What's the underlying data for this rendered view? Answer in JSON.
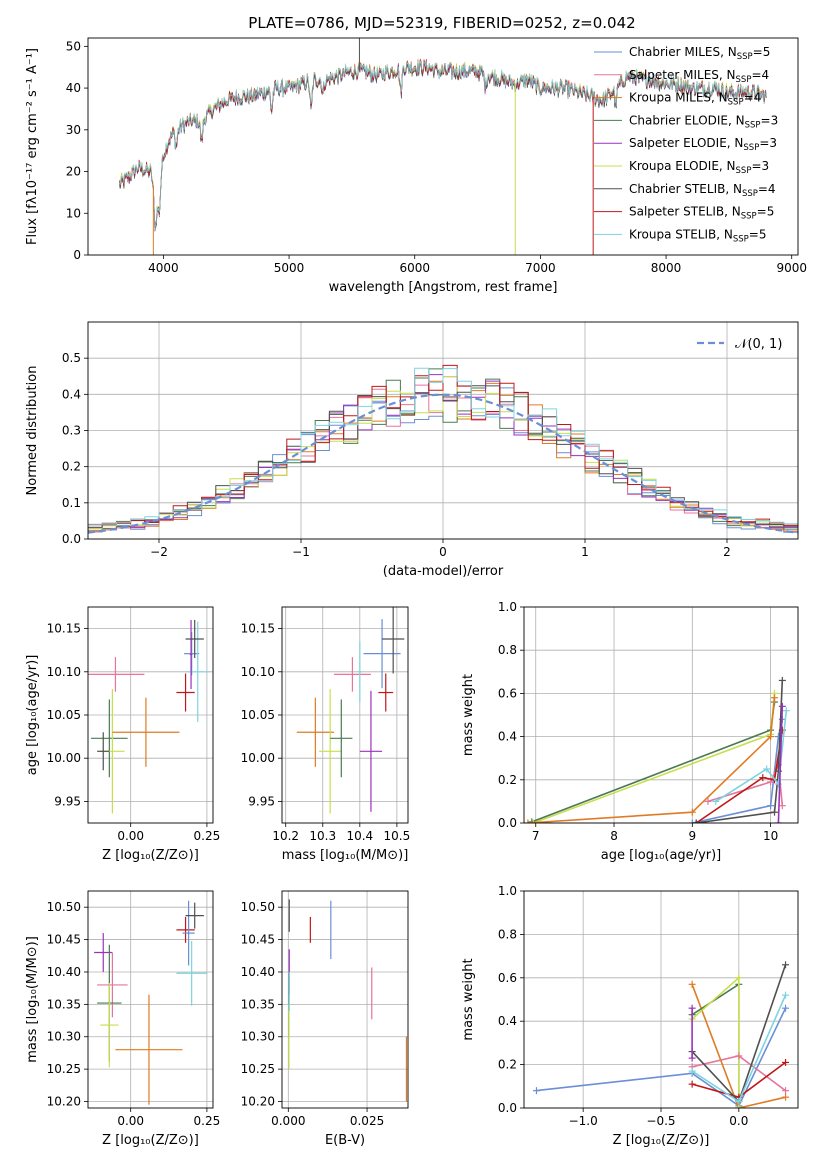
{
  "figure": {
    "title": "PLATE=0786, MJD=52319, FIBERID=0252, z=0.042"
  },
  "colors": {
    "ChMi": "#6a8fd6",
    "SaMi": "#e8739b",
    "KrMi": "#e07b22",
    "ChEl": "#4a7a52",
    "SaEl": "#9933bb",
    "KrEl": "#c7de4e",
    "ChSt": "#505050",
    "SaSt": "#c01818",
    "KrSt": "#7dd3e0"
  },
  "chart_data": [
    {
      "type": "line",
      "id": "spectrum",
      "title": "PLATE=0786, MJD=52319, FIBERID=0252, z=0.042",
      "xlabel": "wavelength [Angstrom, rest frame]",
      "ylabel": "Flux [fλ10⁻¹⁷ erg cm⁻² s⁻¹ A⁻¹]",
      "xlim": [
        3400,
        9050
      ],
      "ylim": [
        0,
        52
      ],
      "xticks": [
        4000,
        5000,
        6000,
        7000,
        8000,
        9000
      ],
      "yticks": [
        0,
        10,
        20,
        30,
        40,
        50
      ],
      "grid": false,
      "legend_position": "right",
      "continuum": {
        "x": [
          3650,
          3700,
          3800,
          3900,
          3950,
          4000,
          4050,
          4100,
          4200,
          4300,
          4400,
          4500,
          4600,
          4700,
          4800,
          4900,
          5000,
          5100,
          5200,
          5300,
          5400,
          5500,
          5600,
          5700,
          5800,
          5900,
          6000,
          6100,
          6200,
          6300,
          6400,
          6500,
          6600,
          6700,
          6800,
          6900,
          7000,
          7100,
          7200,
          7300,
          7400,
          7500,
          7600,
          7700,
          7800,
          7900,
          8000,
          8100,
          8200,
          8300,
          8400,
          8500,
          8600,
          8700,
          8800
        ],
        "y": [
          17,
          18,
          21,
          20,
          12,
          24,
          28,
          30,
          32,
          32,
          35,
          37,
          38,
          38,
          39,
          40,
          40,
          41,
          42,
          42,
          43,
          44,
          44,
          43,
          44,
          45,
          45,
          45,
          44,
          44,
          44,
          44,
          43,
          42,
          41,
          42,
          40,
          40,
          40,
          39,
          38,
          37,
          40,
          43,
          42,
          42,
          41,
          41,
          40,
          40,
          40,
          39,
          39,
          39,
          38
        ]
      },
      "series": [
        {
          "name": "Chabrier MILES, N_SSP=5",
          "label_main": "Chabrier MILES, N",
          "label_sub": "SSP",
          "label_tail": "=5",
          "key": "ChMi"
        },
        {
          "name": "Salpeter MILES, N_SSP=4",
          "label_main": "Salpeter MILES, N",
          "label_sub": "SSP",
          "label_tail": "=4",
          "key": "SaMi"
        },
        {
          "name": "Kroupa MILES, N_SSP=4",
          "label_main": "Kroupa MILES, N",
          "label_sub": "SSP",
          "label_tail": "=4",
          "key": "KrMi"
        },
        {
          "name": "Chabrier ELODIE, N_SSP=3",
          "label_main": "Chabrier ELODIE, N",
          "label_sub": "SSP",
          "label_tail": "=3",
          "key": "ChEl"
        },
        {
          "name": "Salpeter ELODIE, N_SSP=3",
          "label_main": "Salpeter ELODIE, N",
          "label_sub": "SSP",
          "label_tail": "=3",
          "key": "SaEl"
        },
        {
          "name": "Kroupa ELODIE, N_SSP=3",
          "label_main": "Kroupa ELODIE, N",
          "label_sub": "SSP",
          "label_tail": "=3",
          "key": "KrEl"
        },
        {
          "name": "Chabrier STELIB, N_SSP=4",
          "label_main": "Chabrier STELIB, N",
          "label_sub": "SSP",
          "label_tail": "=4",
          "key": "ChSt"
        },
        {
          "name": "Salpeter STELIB, N_SSP=5",
          "label_main": "Salpeter STELIB, N",
          "label_sub": "SSP",
          "label_tail": "=5",
          "key": "SaSt"
        },
        {
          "name": "Kroupa STELIB, N_SSP=5",
          "label_main": "Kroupa STELIB, N",
          "label_sub": "SSP",
          "label_tail": "=5",
          "key": "KrSt"
        }
      ],
      "spikes": [
        {
          "key": "KrMi",
          "x": 3920
        },
        {
          "key": "KrEl",
          "x": 6800
        },
        {
          "key": "SaSt",
          "x": 7420
        },
        {
          "key": "ChSt",
          "x": 5560,
          "to": 53
        }
      ]
    },
    {
      "type": "line",
      "id": "residuals",
      "xlabel": "(data-model)/error",
      "ylabel": "Normed distribution",
      "xlim": [
        -2.5,
        2.5
      ],
      "ylim": [
        0,
        0.6
      ],
      "xticks": [
        -2,
        -1,
        0,
        1,
        2
      ],
      "xticklabels": [
        "−2",
        "−1",
        "0",
        "1",
        "2"
      ],
      "yticks": [
        0.0,
        0.1,
        0.2,
        0.3,
        0.4,
        0.5
      ],
      "yticklabels": [
        "0.0",
        "0.1",
        "0.2",
        "0.3",
        "0.4",
        "0.5"
      ],
      "grid": true,
      "legend_position": "top-right",
      "legend_label": "𝒩(0, 1)",
      "reference_curve": "standard normal, dashed"
    },
    {
      "type": "scatter",
      "id": "age_vs_Z",
      "xlabel": "Z [log₁₀(Z/Z⊙)]",
      "ylabel": "age  [log₁₀(age/yr)]",
      "xlim": [
        -0.14,
        0.27
      ],
      "ylim": [
        9.925,
        10.175
      ],
      "xticks": [
        0.0,
        0.25
      ],
      "xticklabels": [
        "0.00",
        "0.25"
      ],
      "yticks": [
        9.95,
        10.0,
        10.05,
        10.1,
        10.15
      ],
      "yticklabels": [
        "9.95",
        "10.00",
        "10.05",
        "10.10",
        "10.15"
      ],
      "grid": true,
      "points": [
        {
          "key": "SaMi",
          "x": -0.05,
          "y": 10.097,
          "ex": 0.095,
          "ey": 0.02
        },
        {
          "key": "ChEl",
          "x": -0.07,
          "y": 10.023,
          "ex": 0.06,
          "ey": 0.045
        },
        {
          "key": "KrEl",
          "x": -0.06,
          "y": 10.008,
          "ex": 0.04,
          "ey": 0.072
        },
        {
          "key": "ChSt",
          "x": -0.09,
          "y": 10.008,
          "ex": 0.02,
          "ey": 0.022
        },
        {
          "key": "KrMi",
          "x": 0.05,
          "y": 10.03,
          "ex": 0.11,
          "ey": 0.04
        },
        {
          "key": "SaSt",
          "x": 0.18,
          "y": 10.076,
          "ex": 0.03,
          "ey": 0.022
        },
        {
          "key": "ChMi",
          "x": 0.2,
          "y": 10.121,
          "ex": 0.025,
          "ey": 0.025
        },
        {
          "key": "KrSt",
          "x": 0.22,
          "y": 10.1,
          "ex": 0.04,
          "ey": 0.058
        },
        {
          "key": "SaEl",
          "x": 0.198,
          "y": 10.12,
          "ex": 0.004,
          "ey": 0.04
        },
        {
          "key": "ChSt",
          "x": 0.21,
          "y": 10.138,
          "ex": 0.03,
          "ey": 0.022
        }
      ]
    },
    {
      "type": "scatter",
      "id": "age_vs_mass",
      "xlabel": "mass [log₁₀(M/M⊙)]",
      "ylabel": "",
      "xlim": [
        10.19,
        10.53
      ],
      "ylim": [
        9.925,
        10.175
      ],
      "xticks": [
        10.2,
        10.3,
        10.4,
        10.5
      ],
      "xticklabels": [
        "10.2",
        "10.3",
        "10.4",
        "10.5"
      ],
      "yticks": [
        9.95,
        10.0,
        10.05,
        10.1,
        10.15
      ],
      "yticklabels": [
        "9.95",
        "10.00",
        "10.05",
        "10.10",
        "10.15"
      ],
      "grid": true,
      "points": [
        {
          "key": "KrMi",
          "x": 10.28,
          "y": 10.03,
          "ex": 0.05,
          "ey": 0.04
        },
        {
          "key": "KrEl",
          "x": 10.32,
          "y": 10.008,
          "ex": 0.03,
          "ey": 0.072
        },
        {
          "key": "ChEl",
          "x": 10.35,
          "y": 10.023,
          "ex": 0.03,
          "ey": 0.045
        },
        {
          "key": "SaMi",
          "x": 10.38,
          "y": 10.097,
          "ex": 0.05,
          "ey": 0.02
        },
        {
          "key": "KrSt",
          "x": 10.4,
          "y": 10.1,
          "ex": 0.005,
          "ey": 0.035
        },
        {
          "key": "SaEl",
          "x": 10.43,
          "y": 10.008,
          "ex": 0.03,
          "ey": 0.07
        },
        {
          "key": "ChMi",
          "x": 10.46,
          "y": 10.121,
          "ex": 0.05,
          "ey": 0.04
        },
        {
          "key": "SaSt",
          "x": 10.47,
          "y": 10.076,
          "ex": 0.02,
          "ey": 0.022
        },
        {
          "key": "ChSt",
          "x": 10.49,
          "y": 10.138,
          "ex": 0.03,
          "ey": 0.04
        }
      ]
    },
    {
      "type": "line",
      "id": "massweight_vs_age",
      "xlabel": "age  [log₁₀(age/yr)]",
      "ylabel": "mass weight",
      "xlim": [
        6.85,
        10.35
      ],
      "ylim": [
        0,
        1
      ],
      "xticks": [
        7,
        8,
        9,
        10
      ],
      "xticklabels": [
        "7",
        "8",
        "9",
        "10"
      ],
      "yticks": [
        0.0,
        0.2,
        0.4,
        0.6,
        0.8,
        1.0
      ],
      "yticklabels": [
        "0.0",
        "0.2",
        "0.4",
        "0.6",
        "0.8",
        "1.0"
      ],
      "grid": true,
      "series": [
        {
          "key": "ChEl",
          "x": [
            6.95,
            10.0,
            10.05
          ],
          "y": [
            0.005,
            0.43,
            0.56
          ]
        },
        {
          "key": "KrEl",
          "x": [
            6.97,
            10.0,
            10.05
          ],
          "y": [
            0.0,
            0.41,
            0.6
          ]
        },
        {
          "key": "KrMi",
          "x": [
            6.9,
            9.0,
            10.0,
            10.05
          ],
          "y": [
            0.0,
            0.05,
            0.4,
            0.58
          ]
        },
        {
          "key": "ChMi",
          "x": [
            9.0,
            10.0,
            10.1,
            10.15
          ],
          "y": [
            0.0,
            0.08,
            0.4,
            0.48
          ]
        },
        {
          "key": "SaMi",
          "x": [
            9.2,
            10.0,
            10.1,
            10.15
          ],
          "y": [
            0.1,
            0.19,
            0.27,
            0.08
          ]
        },
        {
          "key": "SaSt",
          "x": [
            9.05,
            9.9,
            10.05,
            10.15
          ],
          "y": [
            0.0,
            0.21,
            0.2,
            0.43
          ]
        },
        {
          "key": "ChSt",
          "x": [
            9.05,
            10.05,
            10.1,
            10.15
          ],
          "y": [
            0.0,
            0.05,
            0.24,
            0.66
          ]
        },
        {
          "key": "KrSt",
          "x": [
            9.3,
            9.95,
            10.1,
            10.2
          ],
          "y": [
            0.1,
            0.25,
            0.18,
            0.52
          ]
        },
        {
          "key": "SaEl",
          "x": [
            10.1,
            10.15
          ],
          "y": [
            0.0,
            0.54
          ]
        }
      ]
    },
    {
      "type": "scatter",
      "id": "mass_vs_Z",
      "xlabel": "Z [log₁₀(Z/Z⊙)]",
      "ylabel": "mass [log₁₀(M/M⊙)]",
      "xlim": [
        -0.14,
        0.27
      ],
      "ylim": [
        10.19,
        10.525
      ],
      "xticks": [
        0.0,
        0.25
      ],
      "xticklabels": [
        "0.00",
        "0.25"
      ],
      "yticks": [
        10.2,
        10.25,
        10.3,
        10.35,
        10.4,
        10.45,
        10.5
      ],
      "yticklabels": [
        "10.20",
        "10.25",
        "10.30",
        "10.35",
        "10.40",
        "10.45",
        "10.50"
      ],
      "grid": true,
      "points": [
        {
          "key": "SaEl",
          "x": -0.09,
          "y": 10.43,
          "ex": 0.03,
          "ey": 0.03
        },
        {
          "key": "SaMi",
          "x": -0.06,
          "y": 10.38,
          "ex": 0.05,
          "ey": 0.05
        },
        {
          "key": "ChEl",
          "x": -0.07,
          "y": 10.352,
          "ex": 0.04,
          "ey": 0.09
        },
        {
          "key": "KrEl",
          "x": -0.07,
          "y": 10.318,
          "ex": 0.03,
          "ey": 0.065
        },
        {
          "key": "KrMi",
          "x": 0.06,
          "y": 10.28,
          "ex": 0.11,
          "ey": 0.085
        },
        {
          "key": "SaSt",
          "x": 0.18,
          "y": 10.465,
          "ex": 0.03,
          "ey": 0.02
        },
        {
          "key": "ChMi",
          "x": 0.19,
          "y": 10.46,
          "ex": 0.02,
          "ey": 0.05
        },
        {
          "key": "ChSt",
          "x": 0.21,
          "y": 10.487,
          "ex": 0.03,
          "ey": 0.02
        },
        {
          "key": "KrSt",
          "x": 0.2,
          "y": 10.398,
          "ex": 0.05,
          "ey": 0.05
        }
      ]
    },
    {
      "type": "scatter",
      "id": "mass_vs_EBV",
      "xlabel": "E(B-V)",
      "ylabel": "",
      "xlim": [
        -0.002,
        0.038
      ],
      "ylim": [
        10.19,
        10.525
      ],
      "xticks": [
        0.0,
        0.025
      ],
      "xticklabels": [
        "0.000",
        "0.025"
      ],
      "yticks": [
        10.2,
        10.25,
        10.3,
        10.35,
        10.4,
        10.45,
        10.5
      ],
      "yticklabels": [
        "10.20",
        "10.25",
        "10.30",
        "10.35",
        "10.40",
        "10.45",
        "10.50"
      ],
      "grid": true,
      "points": [
        {
          "key": "ChSt",
          "x": 0.0003,
          "y": 10.487,
          "ey": 0.025
        },
        {
          "key": "SaEl",
          "x": 0.0003,
          "y": 10.4,
          "ey": 0.035
        },
        {
          "key": "ChEl",
          "x": 0.0002,
          "y": 10.35,
          "ey": 0.05
        },
        {
          "key": "KrEl",
          "x": 0.0002,
          "y": 10.3,
          "ey": 0.05
        },
        {
          "key": "KrSt",
          "x": 0.0003,
          "y": 10.37,
          "ey": 0.03
        },
        {
          "key": "SaSt",
          "x": 0.007,
          "y": 10.465,
          "ey": 0.02
        },
        {
          "key": "ChMi",
          "x": 0.0135,
          "y": 10.465,
          "ey": 0.045
        },
        {
          "key": "SaMi",
          "x": 0.0265,
          "y": 10.367,
          "ey": 0.04
        },
        {
          "key": "KrMi",
          "x": 0.0375,
          "y": 10.25,
          "ey": 0.05
        }
      ]
    },
    {
      "type": "line",
      "id": "massweight_vs_Z",
      "xlabel": "Z [log₁₀(Z/Z⊙)]",
      "ylabel": "mass weight",
      "xlim": [
        -1.38,
        0.38
      ],
      "ylim": [
        0,
        1
      ],
      "xticks": [
        -1.0,
        -0.5,
        0.0
      ],
      "xticklabels": [
        "−1.0",
        "−0.5",
        "0.0"
      ],
      "yticks": [
        0.0,
        0.2,
        0.4,
        0.6,
        0.8,
        1.0
      ],
      "yticklabels": [
        "0.0",
        "0.2",
        "0.4",
        "0.6",
        "0.8",
        "1.0"
      ],
      "grid": true,
      "series": [
        {
          "key": "ChMi",
          "x": [
            -1.3,
            -0.3,
            0.0,
            0.3
          ],
          "y": [
            0.08,
            0.16,
            0.01,
            0.46
          ]
        },
        {
          "key": "KrMi",
          "x": [
            -0.3,
            0.0,
            0.3
          ],
          "y": [
            0.57,
            0.0,
            0.05
          ]
        },
        {
          "key": "ChEl",
          "x": [
            -0.3,
            0.0,
            0.0
          ],
          "y": [
            0.43,
            0.57,
            0.0
          ]
        },
        {
          "key": "KrEl",
          "x": [
            -0.3,
            0.0,
            0.0
          ],
          "y": [
            0.41,
            0.6,
            0.0
          ]
        },
        {
          "key": "SaMi",
          "x": [
            -0.3,
            0.0,
            0.3
          ],
          "y": [
            0.19,
            0.24,
            0.08
          ]
        },
        {
          "key": "SaSt",
          "x": [
            -0.3,
            0.0,
            0.3
          ],
          "y": [
            0.11,
            0.05,
            0.21
          ]
        },
        {
          "key": "ChSt",
          "x": [
            -0.3,
            0.0,
            0.3
          ],
          "y": [
            0.26,
            0.03,
            0.66
          ]
        },
        {
          "key": "KrSt",
          "x": [
            -0.3,
            0.0,
            0.3
          ],
          "y": [
            0.17,
            0.03,
            0.52
          ]
        },
        {
          "key": "SaEl",
          "x": [
            -0.3,
            -0.3
          ],
          "y": [
            0.23,
            0.46
          ]
        }
      ]
    }
  ]
}
